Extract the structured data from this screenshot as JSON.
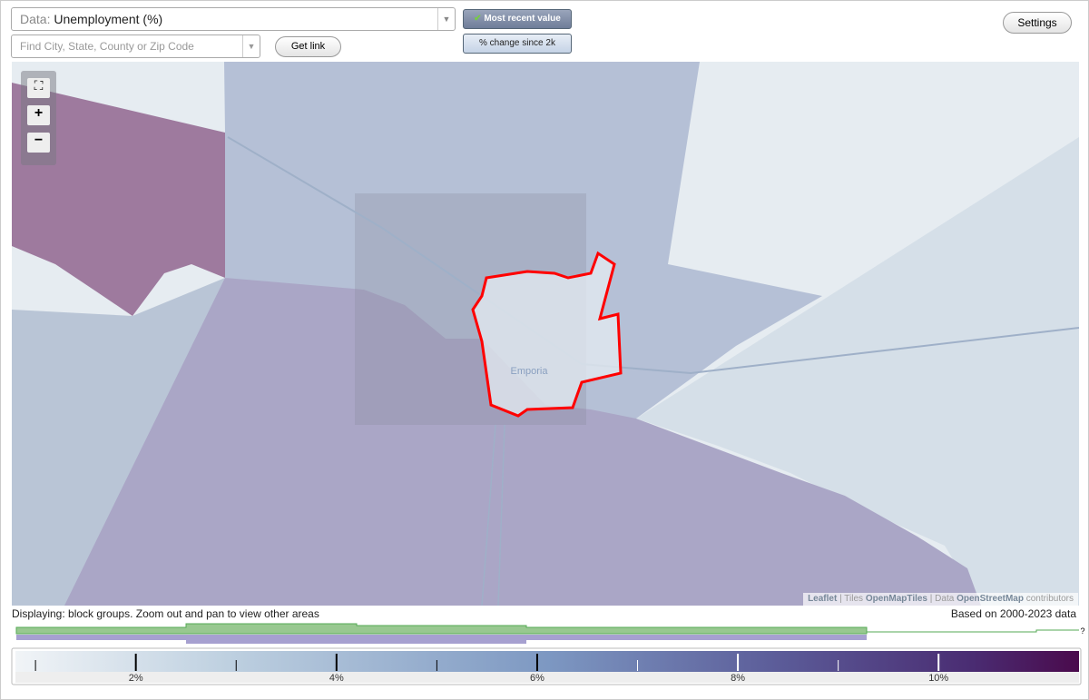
{
  "header": {
    "data_prefix": "Data:",
    "data_value": "Unemployment (%)",
    "most_recent": "Most recent value",
    "change": "% change since 2k",
    "settings": "Settings",
    "search_placeholder": "Find City, State, County or Zip Code",
    "get_link": "Get link"
  },
  "map": {
    "place_label": "Emporia",
    "attribution": {
      "leaflet": "Leaflet",
      "tiles": "Tiles",
      "tiles_source": "OpenMapTiles",
      "data": "Data",
      "data_source": "OpenStreetMap",
      "contributors": "contributors"
    }
  },
  "footer": {
    "displaying": "Displaying: block groups. Zoom out and pan to view other areas",
    "based_on": "Based on 2000-2023 data",
    "unknown": "?"
  },
  "legend": {
    "range": [
      0.8,
      11.4
    ],
    "ticks": [
      {
        "value": 2,
        "label": "2%"
      },
      {
        "value": 4,
        "label": "4%"
      },
      {
        "value": 6,
        "label": "6%"
      },
      {
        "value": 8,
        "label": "8%"
      },
      {
        "value": 10,
        "label": "10%"
      }
    ],
    "minor_ticks": [
      1,
      3,
      5,
      7,
      9
    ]
  }
}
